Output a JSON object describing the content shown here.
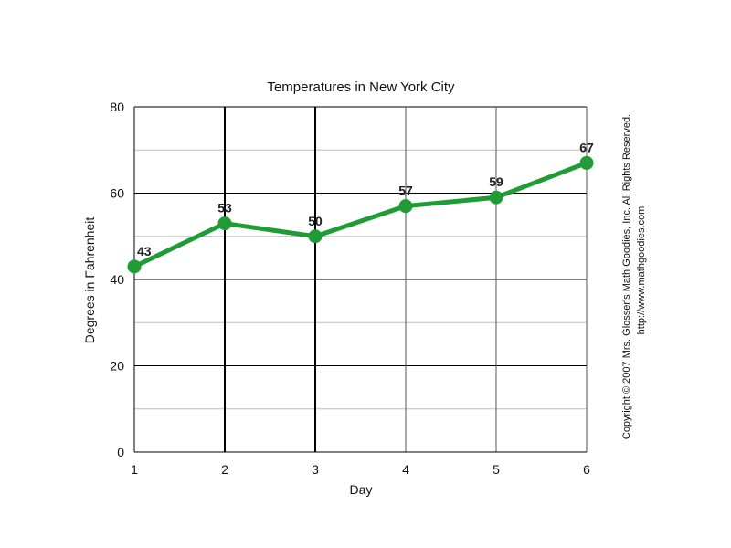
{
  "chart_data": {
    "type": "line",
    "title": "Temperatures in New York City",
    "xlabel": "Day",
    "ylabel": "Degrees in Fahrenheit",
    "x": [
      1,
      2,
      3,
      4,
      5,
      6
    ],
    "categories": [
      "1",
      "2",
      "3",
      "4",
      "5",
      "6"
    ],
    "series": [
      {
        "values": [
          43,
          53,
          50,
          57,
          59,
          67
        ],
        "color": "#1f9c35"
      }
    ],
    "ylim": [
      0,
      80
    ],
    "yticks": [
      "0",
      "20",
      "40",
      "60",
      "80"
    ],
    "grid": true,
    "legend": "none"
  },
  "copyright": {
    "line1": "Copyright © 2007 Mrs. Glosser's Math Goodies, Inc. All Rights Reserved.",
    "line2": "http://www.mathgoodies.com"
  }
}
